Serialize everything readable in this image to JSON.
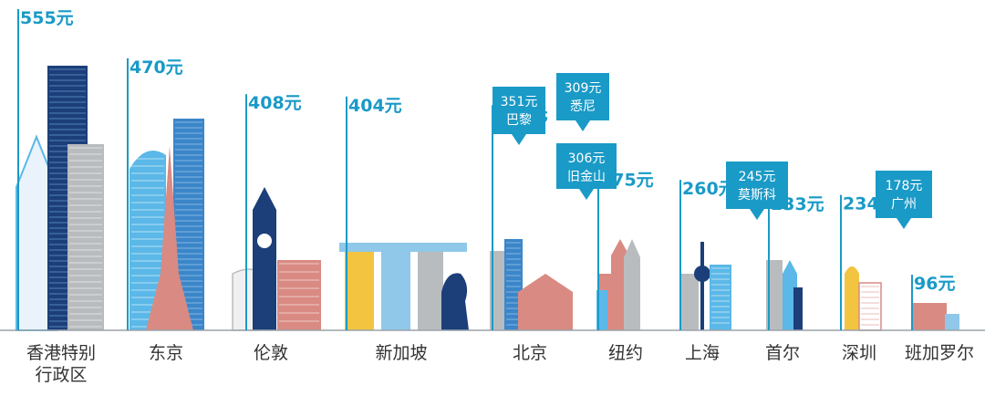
{
  "chart_data": {
    "type": "bar",
    "categories": [
      "香港特别行政区",
      "东京",
      "伦敦",
      "新加坡",
      "北京",
      "纽约",
      "上海",
      "首尔",
      "深圳",
      "班加罗尔"
    ],
    "category_lines": [
      [
        "香港特别",
        "行政区"
      ],
      [
        "东京"
      ],
      [
        "伦敦"
      ],
      [
        "新加坡"
      ],
      [
        "北京"
      ],
      [
        "纽约"
      ],
      [
        "上海"
      ],
      [
        "首尔"
      ],
      [
        "深圳"
      ],
      [
        "班加罗尔"
      ]
    ],
    "values": [
      555,
      470,
      408,
      404,
      389,
      275,
      260,
      233,
      234,
      96
    ],
    "value_labels": [
      "555元",
      "470元",
      "408元",
      "404元",
      "389元",
      "275元",
      "260元",
      "233元",
      "234元",
      "96元"
    ],
    "callouts": [
      {
        "value": 351,
        "value_label": "351元",
        "city": "巴黎",
        "anchor": "北京"
      },
      {
        "value": 309,
        "value_label": "309元",
        "city": "悉尼",
        "anchor": "北京"
      },
      {
        "value": 306,
        "value_label": "306元",
        "city": "旧金山",
        "anchor": "北京"
      },
      {
        "value": 245,
        "value_label": "245元",
        "city": "莫斯科",
        "anchor": "首尔"
      },
      {
        "value": 178,
        "value_label": "178元",
        "city": "广州",
        "anchor": "深圳"
      }
    ],
    "ylim": [
      0,
      555
    ],
    "grid": false,
    "colors": {
      "value_line": "#1a9ac7",
      "value_text": "#1a9ac7",
      "callout": "#1a9ac7",
      "baseline": "#9aa3aa",
      "building_blue": "#1f6fb2",
      "building_navy": "#1c3f7a",
      "building_light": "#5bb8e8",
      "building_red": "#d98a82",
      "building_yellow": "#f2c440",
      "building_gray": "#b9bcbf"
    }
  }
}
